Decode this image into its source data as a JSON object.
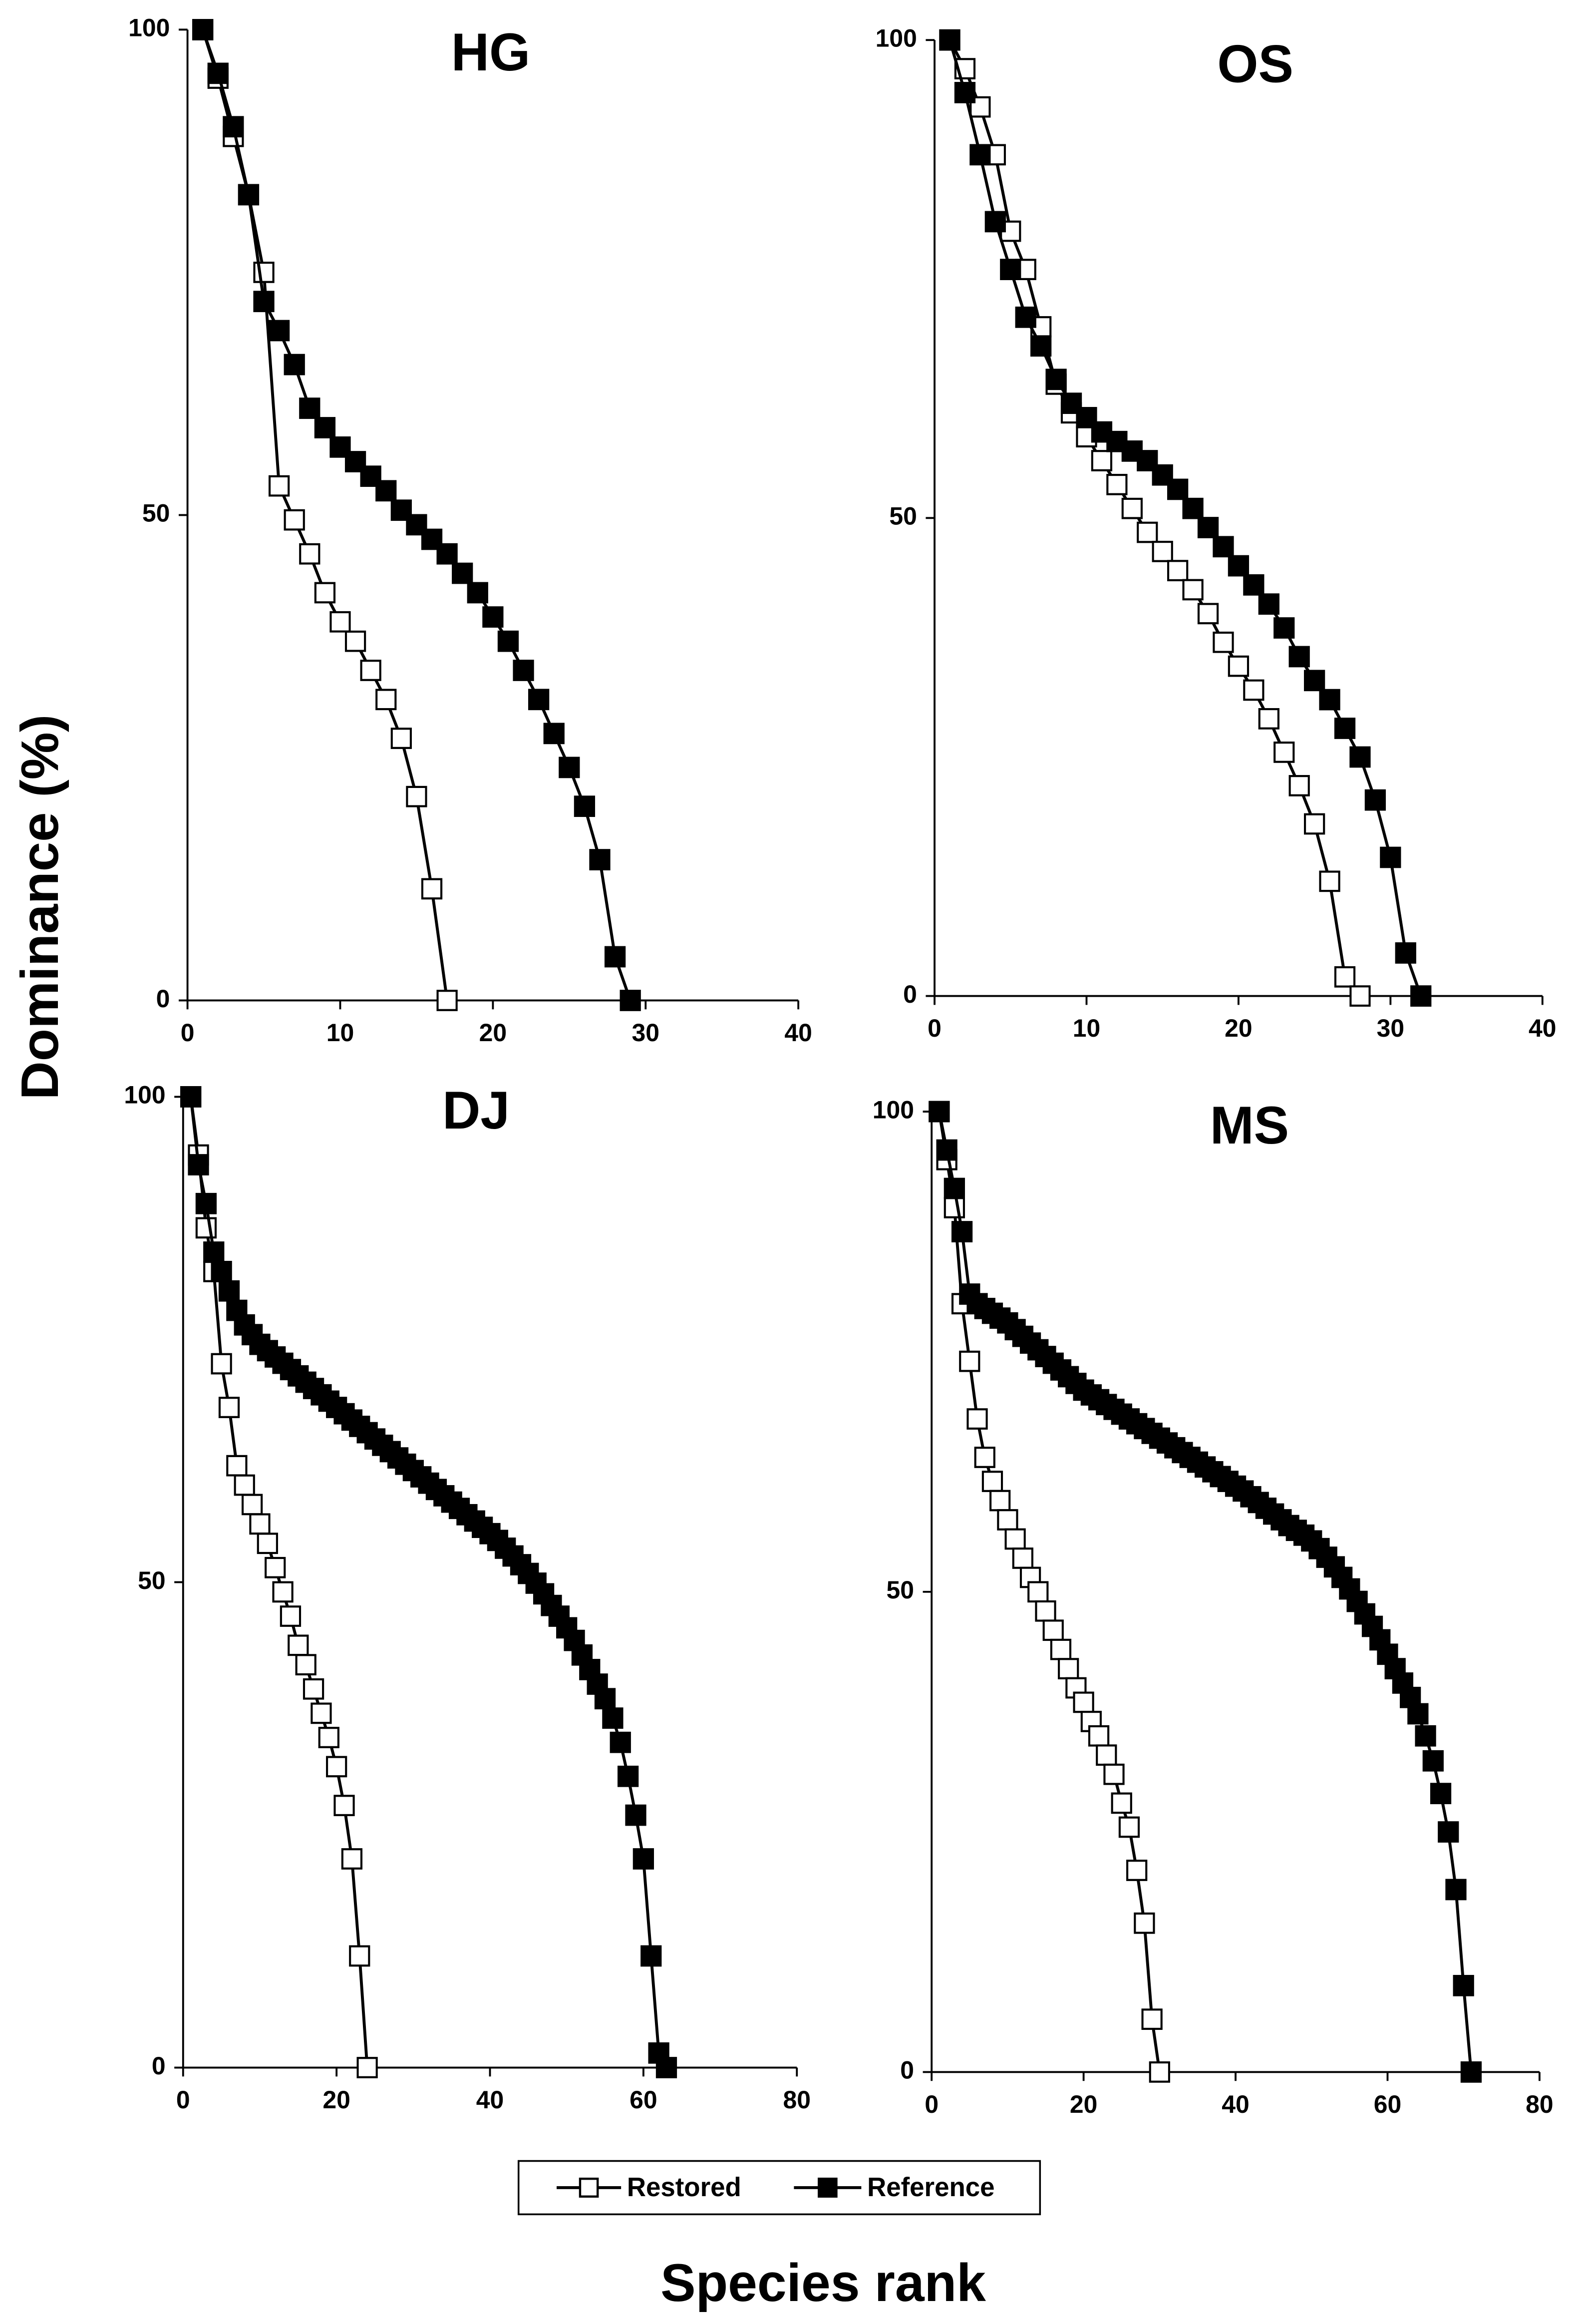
{
  "xlabel": "Species rank",
  "ylabel": "Dominance (%)",
  "chart_data": [
    {
      "type": "line",
      "title": "HG",
      "xlim": [
        0,
        40
      ],
      "xticks": [
        0,
        10,
        20,
        30,
        40
      ],
      "ylim": [
        0,
        100
      ],
      "yticks": [
        0,
        50,
        100
      ],
      "series": [
        {
          "name": "Restored",
          "color": "#000000",
          "marker": "open-square",
          "x": [
            1,
            2,
            3,
            4,
            5,
            6,
            7,
            8,
            9,
            10,
            11,
            12,
            13,
            14,
            15,
            16,
            17
          ],
          "values": [
            100,
            95,
            89,
            83,
            75,
            53,
            49.5,
            46,
            42,
            39,
            37,
            34,
            31,
            27,
            21,
            11.5,
            0
          ]
        },
        {
          "name": "Reference",
          "color": "#000000",
          "marker": "filled-square",
          "x": [
            1,
            2,
            3,
            4,
            5,
            6,
            7,
            8,
            9,
            10,
            11,
            12,
            13,
            14,
            15,
            16,
            17,
            18,
            19,
            20,
            21,
            22,
            23,
            24,
            25,
            26,
            27,
            28,
            29
          ],
          "values": [
            100,
            95.5,
            90,
            83,
            72,
            69,
            65.5,
            61,
            59,
            57,
            55.5,
            54,
            52.5,
            50.5,
            49,
            47.5,
            46,
            44,
            42,
            39.5,
            37,
            34,
            31,
            27.5,
            24,
            20,
            14.5,
            4.5,
            0
          ]
        }
      ]
    },
    {
      "type": "line",
      "title": "OS",
      "xlim": [
        0,
        40
      ],
      "xticks": [
        0,
        10,
        20,
        30,
        40
      ],
      "ylim": [
        0,
        100
      ],
      "yticks": [
        0,
        50,
        100
      ],
      "series": [
        {
          "name": "Restored",
          "color": "#000000",
          "marker": "open-square",
          "x": [
            1,
            2,
            3,
            4,
            5,
            6,
            7,
            8,
            9,
            10,
            11,
            12,
            13,
            14,
            15,
            16,
            17,
            18,
            19,
            20,
            21,
            22,
            23,
            24,
            25,
            26,
            27,
            28
          ],
          "values": [
            100,
            97,
            93,
            88,
            80,
            76,
            70,
            64,
            61,
            58.5,
            56,
            53.5,
            51,
            48.5,
            46.5,
            44.5,
            42.5,
            40,
            37,
            34.5,
            32,
            29,
            25.5,
            22,
            18,
            12,
            2,
            0
          ]
        },
        {
          "name": "Reference",
          "color": "#000000",
          "marker": "filled-square",
          "x": [
            1,
            2,
            3,
            4,
            5,
            6,
            7,
            8,
            9,
            10,
            11,
            12,
            13,
            14,
            15,
            16,
            17,
            18,
            19,
            20,
            21,
            22,
            23,
            24,
            25,
            26,
            27,
            28,
            29,
            30,
            31,
            32
          ],
          "values": [
            100,
            94.5,
            88,
            81,
            76,
            71,
            68,
            64.5,
            62,
            60.5,
            59,
            58,
            57,
            56,
            54.5,
            53,
            51,
            49,
            47,
            45,
            43,
            41,
            38.5,
            35.5,
            33,
            31,
            28,
            25,
            20.5,
            14.5,
            4.5,
            0
          ]
        }
      ]
    },
    {
      "type": "line",
      "title": "DJ",
      "xlim": [
        0,
        80
      ],
      "xticks": [
        0,
        20,
        40,
        60,
        80
      ],
      "ylim": [
        0,
        100
      ],
      "yticks": [
        0,
        50,
        100
      ],
      "series": [
        {
          "name": "Restored",
          "color": "#000000",
          "marker": "open-square",
          "x": [
            1,
            2,
            3,
            4,
            5,
            6,
            7,
            8,
            9,
            10,
            11,
            12,
            13,
            14,
            15,
            16,
            17,
            18,
            19,
            20,
            21,
            22,
            23,
            24
          ],
          "values": [
            100,
            94,
            86.5,
            82,
            72.5,
            68,
            62,
            60,
            58,
            56,
            54,
            51.5,
            49,
            46.5,
            43.5,
            41.5,
            39,
            36.5,
            34,
            31,
            27,
            21.5,
            11.5,
            0
          ]
        },
        {
          "name": "Reference",
          "color": "#000000",
          "marker": "filled-square",
          "x": [
            1,
            2,
            3,
            4,
            5,
            6,
            7,
            8,
            9,
            10,
            11,
            12,
            13,
            14,
            15,
            16,
            17,
            18,
            19,
            20,
            21,
            22,
            23,
            24,
            25,
            26,
            27,
            28,
            29,
            30,
            31,
            32,
            33,
            34,
            35,
            36,
            37,
            38,
            39,
            40,
            41,
            42,
            43,
            44,
            45,
            46,
            47,
            48,
            49,
            50,
            51,
            52,
            53,
            54,
            55,
            56,
            57,
            58,
            59,
            60,
            61,
            62,
            63
          ],
          "values": [
            100,
            93,
            89,
            84,
            82,
            80,
            78,
            76.5,
            75.5,
            74.5,
            73.85,
            73.2,
            72.55,
            71.9,
            71.25,
            70.6,
            69.95,
            69.3,
            68.65,
            68,
            67.35,
            66.7,
            66.05,
            65.4,
            64.75,
            64.1,
            63.45,
            62.8,
            62.15,
            61.5,
            60.85,
            60.2,
            59.55,
            58.9,
            58.25,
            57.6,
            56.95,
            56.3,
            55.65,
            55,
            54.3,
            53.5,
            52.7,
            51.8,
            50.9,
            49.9,
            48.8,
            47.6,
            46.5,
            45.3,
            44,
            42.5,
            41,
            39.5,
            38,
            36,
            33.5,
            30,
            26,
            21.5,
            11.5,
            1.5,
            0
          ]
        }
      ]
    },
    {
      "type": "line",
      "title": "MS",
      "xlim": [
        0,
        80
      ],
      "xticks": [
        0,
        20,
        40,
        60,
        80
      ],
      "ylim": [
        0,
        100
      ],
      "yticks": [
        0,
        50,
        100
      ],
      "series": [
        {
          "name": "Restored",
          "color": "#000000",
          "marker": "open-square",
          "x": [
            1,
            2,
            3,
            4,
            5,
            6,
            7,
            8,
            9,
            10,
            11,
            12,
            13,
            14,
            15,
            16,
            17,
            18,
            19,
            20,
            21,
            22,
            23,
            24,
            25,
            26,
            27,
            28,
            29,
            30
          ],
          "values": [
            100,
            95,
            90,
            80,
            74,
            68,
            64,
            61.5,
            59.5,
            57.5,
            55.5,
            53.5,
            51.5,
            50,
            48,
            46,
            44,
            42,
            40,
            38.5,
            36.5,
            35,
            33,
            31,
            28,
            25.5,
            21,
            15.5,
            5.5,
            0
          ]
        },
        {
          "name": "Reference",
          "color": "#000000",
          "marker": "filled-square",
          "x": [
            1,
            2,
            3,
            4,
            5,
            6,
            7,
            8,
            9,
            10,
            11,
            12,
            13,
            14,
            15,
            16,
            17,
            18,
            19,
            20,
            21,
            22,
            23,
            24,
            25,
            26,
            27,
            28,
            29,
            30,
            31,
            32,
            33,
            34,
            35,
            36,
            37,
            38,
            39,
            40,
            41,
            42,
            43,
            44,
            45,
            46,
            47,
            48,
            49,
            50,
            51,
            52,
            53,
            54,
            55,
            56,
            57,
            58,
            59,
            60,
            61,
            62,
            63,
            64,
            65,
            66,
            67,
            68,
            69,
            70,
            71
          ],
          "values": [
            100,
            96,
            92,
            87.5,
            81,
            80,
            79.5,
            79,
            78.5,
            78,
            77.3,
            76.6,
            75.9,
            75.2,
            74.5,
            73.8,
            73.1,
            72.4,
            71.7,
            71,
            70.5,
            70,
            69.5,
            69,
            68.5,
            68,
            67.5,
            67,
            66.5,
            66,
            65.5,
            65,
            64.5,
            64,
            63.5,
            63,
            62.5,
            62,
            61.5,
            61,
            60.5,
            59.9,
            59.3,
            58.7,
            58.1,
            57.5,
            56.9,
            56.4,
            55.9,
            55.3,
            54.5,
            53.6,
            52.6,
            51.5,
            50.3,
            49,
            47.7,
            46.4,
            45,
            43.5,
            42,
            40.5,
            39,
            37.3,
            35,
            32.4,
            29,
            25,
            19,
            9,
            0
          ]
        }
      ]
    }
  ]
}
